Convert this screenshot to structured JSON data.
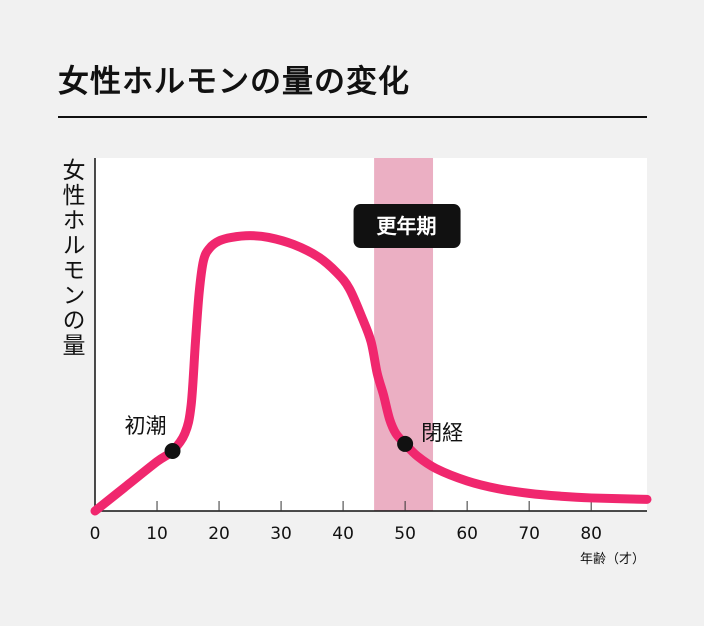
{
  "title": "女性ホルモンの量の変化",
  "colors": {
    "background": "#f1f1f1",
    "plot_background": "#ffffff",
    "curve": "#f0276e",
    "menopause_band": "#ebafc3",
    "label_box": "#111111",
    "text": "#111111"
  },
  "chart_data": {
    "type": "line",
    "ylabel": "女性ホルモンの量",
    "xlabel": "年齢（才）",
    "xlim": [
      0,
      89
    ],
    "xticks": [
      0,
      10,
      20,
      30,
      40,
      50,
      60,
      70,
      80
    ],
    "ylim": [
      0,
      100
    ],
    "y_ticks_shown": false,
    "grid": false,
    "series": [
      {
        "points": [
          [
            0,
            0
          ],
          [
            5,
            7
          ],
          [
            10,
            14
          ],
          [
            12.5,
            17
          ],
          [
            14.5,
            22
          ],
          [
            15.5,
            30
          ],
          [
            16.2,
            48
          ],
          [
            16.8,
            62
          ],
          [
            17.5,
            71
          ],
          [
            18.5,
            74.5
          ],
          [
            20,
            76.5
          ],
          [
            22,
            77.5
          ],
          [
            25,
            78
          ],
          [
            28,
            77.5
          ],
          [
            32,
            75.5
          ],
          [
            36,
            72
          ],
          [
            39,
            67.5
          ],
          [
            41,
            63
          ],
          [
            43,
            55
          ],
          [
            44.5,
            48
          ],
          [
            45.5,
            39
          ],
          [
            46.5,
            33
          ],
          [
            47.5,
            26
          ],
          [
            48.5,
            22
          ],
          [
            50,
            19
          ],
          [
            52,
            15.5
          ],
          [
            55,
            12
          ],
          [
            60,
            8.5
          ],
          [
            65,
            6.3
          ],
          [
            70,
            5
          ],
          [
            75,
            4.2
          ],
          [
            80,
            3.7
          ],
          [
            89,
            3.3
          ]
        ]
      }
    ],
    "shaded_range": {
      "x": [
        45,
        54.5
      ],
      "label": "更年期"
    },
    "annotations": [
      {
        "label": "初潮",
        "x": 12.5,
        "y": 17
      },
      {
        "label": "閉経",
        "x": 50,
        "y": 19
      }
    ]
  }
}
